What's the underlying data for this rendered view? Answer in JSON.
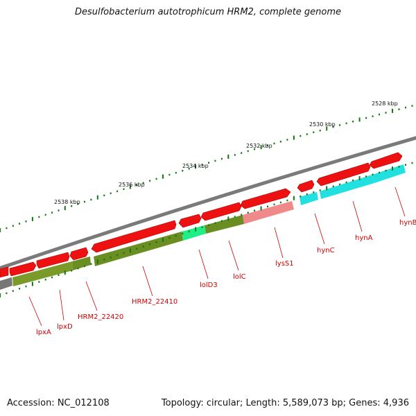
{
  "title": "Desulfobacterium autotrophicum HRM2, complete genome",
  "accession_label": "Accession: NC_012108",
  "summary_label": "Topology: circular; Length: 5,589,073 bp; Genes: 4,936",
  "scale_unit": "kbp",
  "scale_ticks": [
    {
      "label": "2528 kbp",
      "pos": 2528
    },
    {
      "label": "2530 kbp",
      "pos": 2530
    },
    {
      "label": "2532 kbp",
      "pos": 2532
    },
    {
      "label": "2534 kbp",
      "pos": 2534
    },
    {
      "label": "2536 kbp",
      "pos": 2536
    },
    {
      "label": "2538 kbp",
      "pos": 2538
    }
  ],
  "colors": {
    "backbone": "#7a7a7a",
    "gene_arrow": "#ee1111",
    "cds_olive": "#6b8e23",
    "cds_cyan": "#22e0e0",
    "cds_green": "#22ee88",
    "cds_pink": "#f08a8a",
    "cds_gray": "#777777",
    "tick": "#117711",
    "label": "#cc0000"
  },
  "gene_labels": [
    "lpxA",
    "lpxD",
    "HRM2_22420",
    "HRM2_22410",
    "lolD3",
    "lolC",
    "lysS1",
    "hynC",
    "hynA",
    "hynB"
  ]
}
